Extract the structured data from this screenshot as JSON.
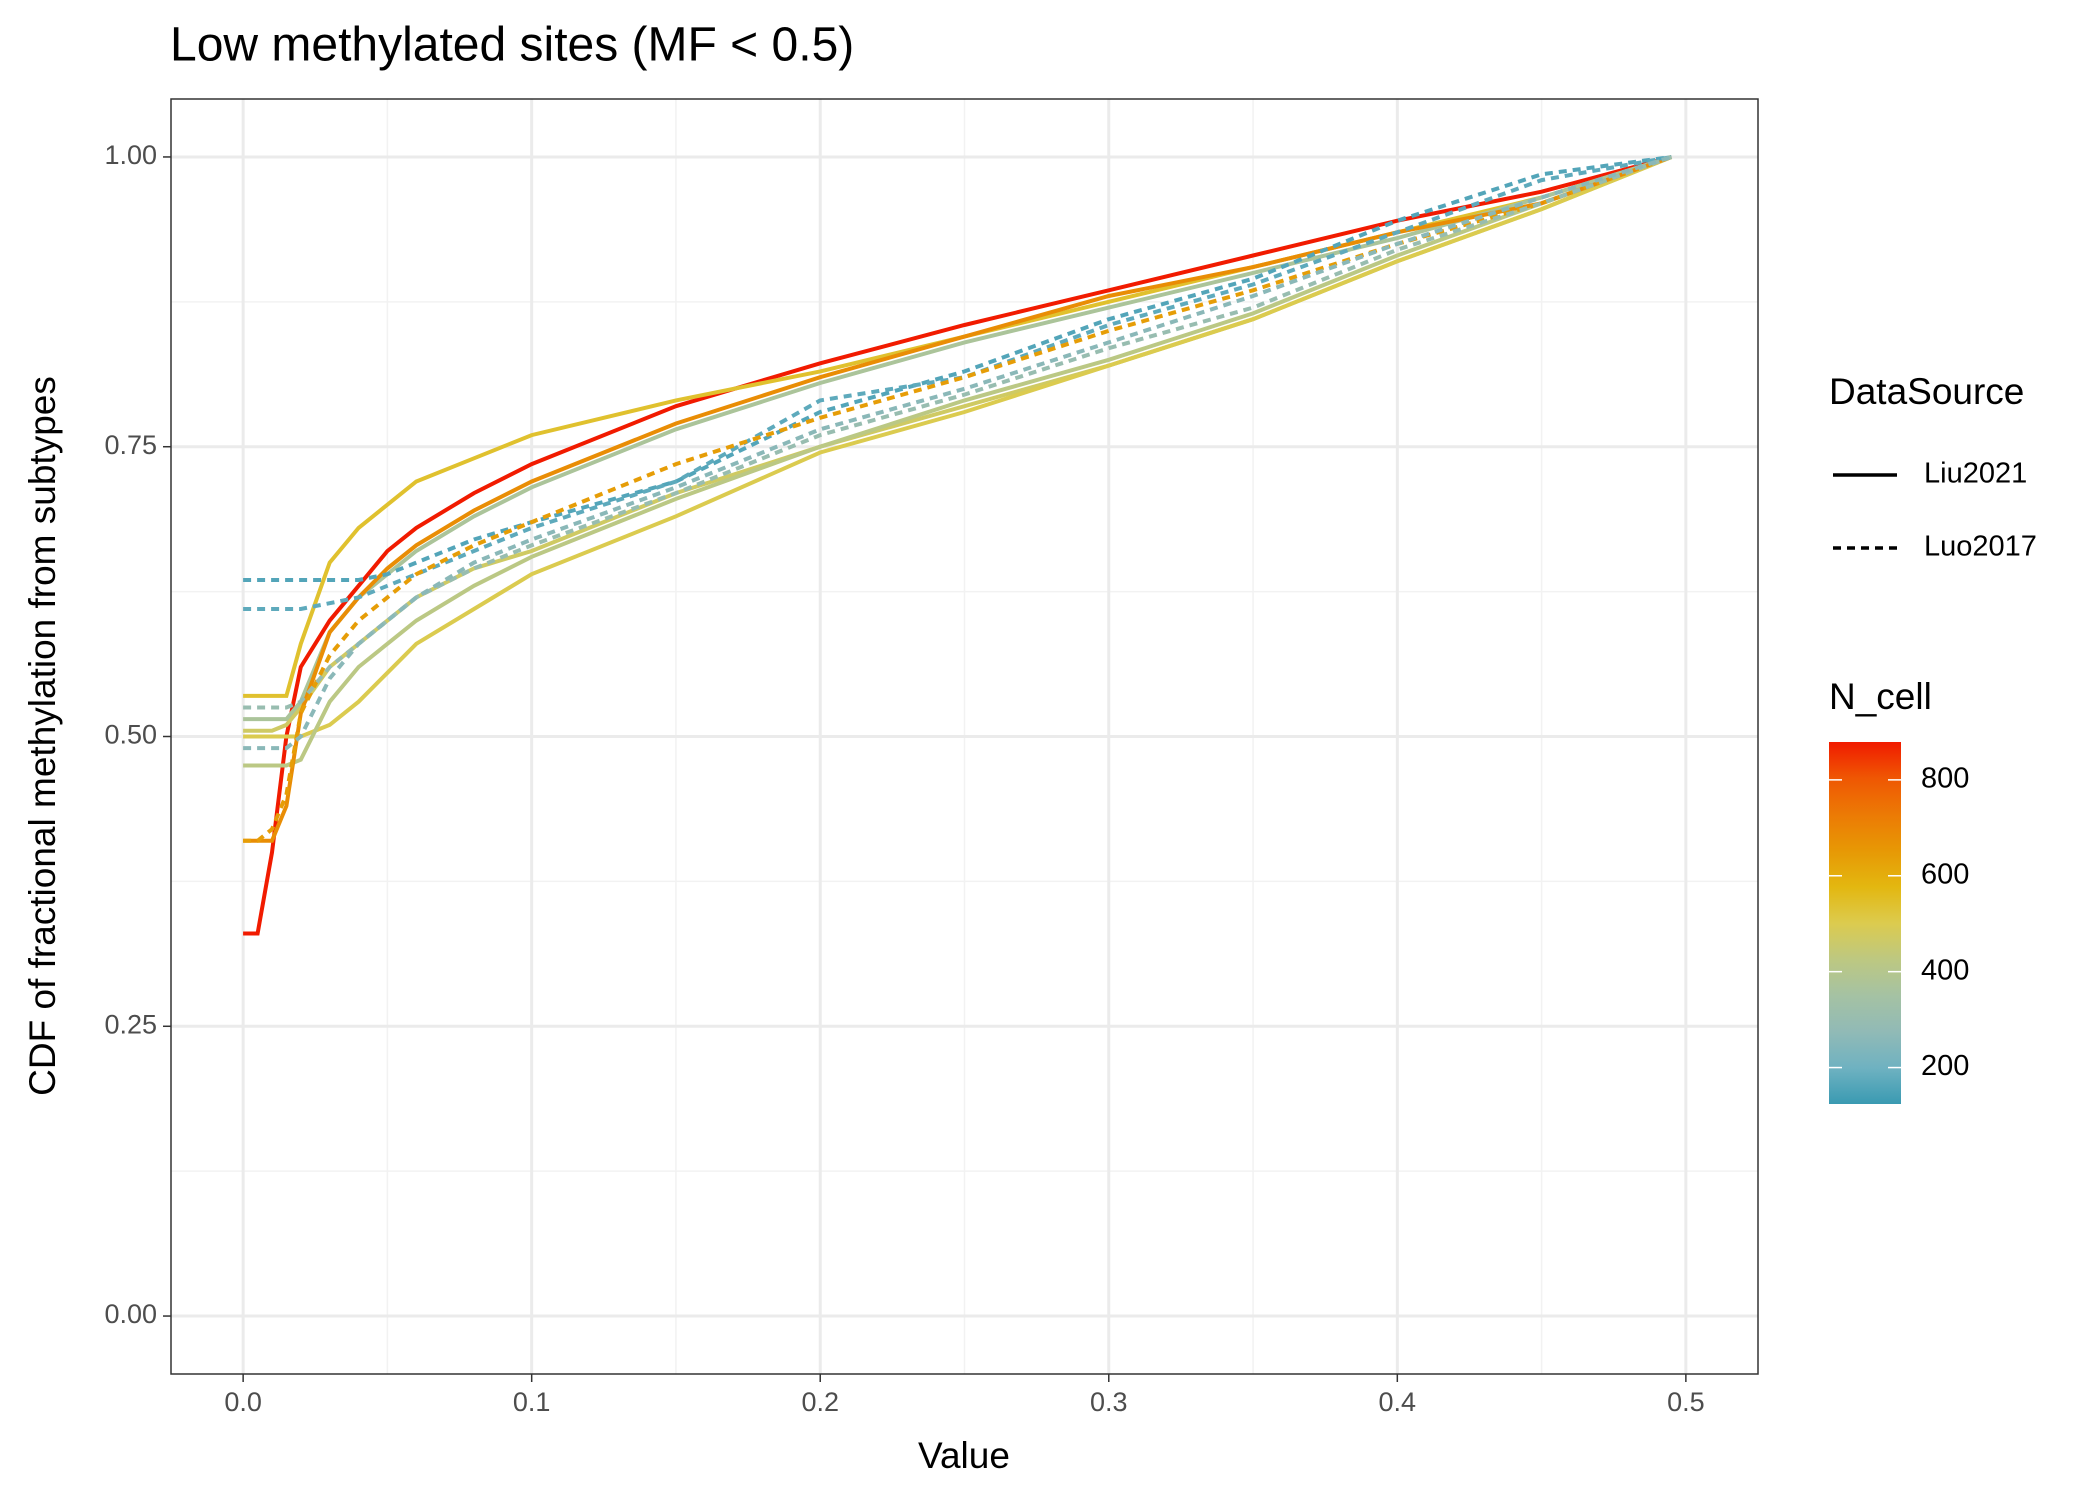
{
  "chart_data": {
    "type": "line",
    "title": "Low methylated sites (MF < 0.5)",
    "x_label": "Value",
    "y_label": "CDF of fractional methylation from subtypes",
    "xlim": [
      -0.025,
      0.525
    ],
    "ylim": [
      -0.05,
      1.05
    ],
    "xticks": [
      {
        "value": 0,
        "label": "0.0"
      },
      0.1,
      0.2,
      0.3,
      0.4,
      0.5
    ],
    "yticks": [
      {
        "value": 0,
        "label": "0.00"
      },
      {
        "value": 0.25,
        "label": "0.25"
      },
      {
        "value": 0.5,
        "label": "0.50"
      },
      {
        "value": 0.75,
        "label": "0.75"
      },
      {
        "value": 1,
        "label": "1.00"
      }
    ],
    "grid": true,
    "linetype_legend": {
      "title": "DataSource",
      "items": [
        {
          "name": "Liu2021",
          "dash": "solid"
        },
        {
          "name": "Luo2017",
          "dash": "dashed"
        }
      ]
    },
    "colorbar": {
      "title": "N_cell",
      "lim": [
        124,
        879
      ],
      "ticks": [
        200,
        400,
        600,
        800
      ],
      "colors": [
        "#3A9AB2",
        "#6FB2C1",
        "#91BAB6",
        "#A5C2A3",
        "#BDC881",
        "#DCCB4E",
        "#E3B710",
        "#E79805",
        "#EC7A05",
        "#EF5703",
        "#F11B00"
      ]
    },
    "x": [
      0,
      0.005,
      0.01,
      0.015,
      0.02,
      0.03,
      0.04,
      0.05,
      0.06,
      0.08,
      0.1,
      0.15,
      0.2,
      0.25,
      0.3,
      0.35,
      0.4,
      0.45,
      0.495
    ],
    "series": [
      {
        "source": "Liu2021",
        "n_cell": 879,
        "values": [
          0.33,
          0.33,
          0.4,
          0.5,
          0.56,
          0.6,
          0.63,
          0.66,
          0.68,
          0.71,
          0.735,
          0.785,
          0.822,
          0.855,
          0.885,
          0.915,
          0.945,
          0.97,
          1.0
        ]
      },
      {
        "source": "Liu2021",
        "n_cell": 540,
        "values": [
          0.535,
          0.535,
          0.535,
          0.535,
          0.58,
          0.65,
          0.68,
          0.7,
          0.72,
          0.74,
          0.76,
          0.79,
          0.815,
          0.845,
          0.875,
          0.905,
          0.935,
          0.965,
          1.0
        ]
      },
      {
        "source": "Liu2021",
        "n_cell": 470,
        "values": [
          0.505,
          0.505,
          0.505,
          0.51,
          0.525,
          0.56,
          0.58,
          0.6,
          0.62,
          0.645,
          0.66,
          0.71,
          0.75,
          0.785,
          0.82,
          0.86,
          0.91,
          0.955,
          1.0
        ]
      },
      {
        "source": "Liu2021",
        "n_cell": 500,
        "values": [
          0.5,
          0.5,
          0.5,
          0.5,
          0.5,
          0.51,
          0.53,
          0.555,
          0.58,
          0.61,
          0.64,
          0.69,
          0.745,
          0.78,
          0.82,
          0.86,
          0.91,
          0.955,
          1.0
        ]
      },
      {
        "source": "Liu2021",
        "n_cell": 420,
        "values": [
          0.475,
          0.475,
          0.475,
          0.475,
          0.48,
          0.53,
          0.56,
          0.58,
          0.6,
          0.63,
          0.655,
          0.705,
          0.75,
          0.79,
          0.825,
          0.865,
          0.915,
          0.96,
          1.0
        ]
      },
      {
        "source": "Liu2021",
        "n_cell": 370,
        "values": [
          0.515,
          0.515,
          0.515,
          0.515,
          0.53,
          0.59,
          0.62,
          0.64,
          0.66,
          0.69,
          0.715,
          0.765,
          0.805,
          0.84,
          0.87,
          0.9,
          0.93,
          0.965,
          1.0
        ]
      },
      {
        "source": "Liu2021",
        "n_cell": 680,
        "values": [
          0.41,
          0.41,
          0.41,
          0.44,
          0.52,
          0.59,
          0.62,
          0.645,
          0.665,
          0.695,
          0.72,
          0.77,
          0.81,
          0.845,
          0.88,
          0.905,
          0.935,
          0.96,
          1.0
        ]
      },
      {
        "source": "Luo2017",
        "n_cell": 160,
        "values": [
          0.635,
          0.635,
          0.635,
          0.635,
          0.635,
          0.635,
          0.635,
          0.64,
          0.65,
          0.67,
          0.685,
          0.72,
          0.78,
          0.815,
          0.86,
          0.895,
          0.945,
          0.985,
          1.0
        ]
      },
      {
        "source": "Luo2017",
        "n_cell": 175,
        "values": [
          0.61,
          0.61,
          0.61,
          0.61,
          0.61,
          0.615,
          0.62,
          0.63,
          0.64,
          0.66,
          0.68,
          0.72,
          0.79,
          0.81,
          0.855,
          0.89,
          0.935,
          0.98,
          1.0
        ]
      },
      {
        "source": "Luo2017",
        "n_cell": 640,
        "values": [
          0.41,
          0.41,
          0.42,
          0.45,
          0.52,
          0.57,
          0.6,
          0.62,
          0.64,
          0.665,
          0.685,
          0.735,
          0.775,
          0.81,
          0.85,
          0.885,
          0.925,
          0.96,
          1.0
        ]
      },
      {
        "source": "Luo2017",
        "n_cell": 300,
        "values": [
          0.525,
          0.525,
          0.525,
          0.525,
          0.53,
          0.56,
          0.58,
          0.6,
          0.62,
          0.645,
          0.665,
          0.71,
          0.76,
          0.795,
          0.835,
          0.87,
          0.92,
          0.96,
          1.0
        ]
      },
      {
        "source": "Luo2017",
        "n_cell": 260,
        "values": [
          0.49,
          0.49,
          0.49,
          0.49,
          0.5,
          0.55,
          0.58,
          0.6,
          0.62,
          0.65,
          0.67,
          0.715,
          0.765,
          0.8,
          0.84,
          0.88,
          0.925,
          0.965,
          1.0
        ]
      }
    ]
  }
}
